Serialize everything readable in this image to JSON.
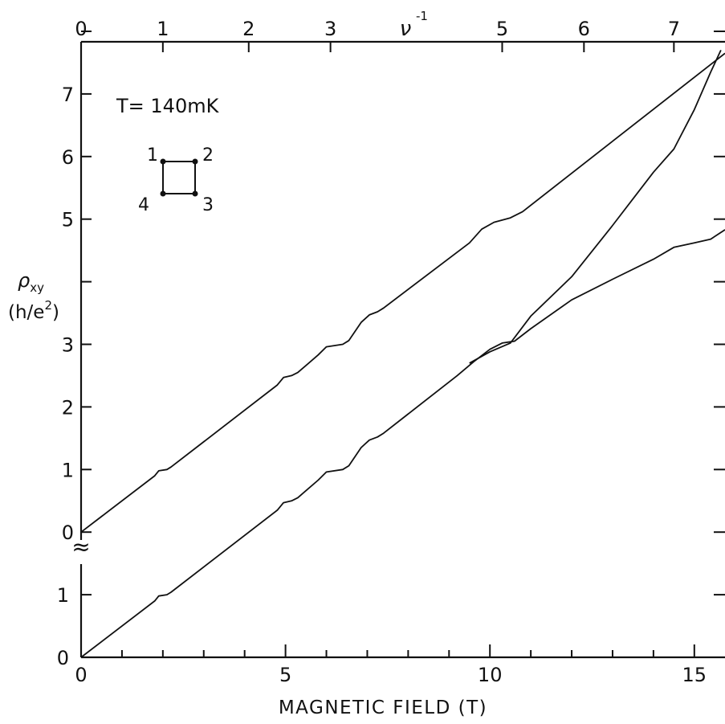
{
  "chart_data": {
    "type": "line",
    "xlabel": "MAGNETIC FIELD (T)",
    "xlim": [
      0,
      15.75
    ],
    "x_ticks": [
      0,
      5,
      10,
      15
    ],
    "x_tick_labels": [
      "0",
      "5",
      "10",
      "15"
    ],
    "top_axis": {
      "label": "ν",
      "label_exponent": "-1",
      "tick_labels": [
        "0",
        "1",
        "2",
        "3",
        "5",
        "6",
        "7"
      ],
      "tick_positions_field": [
        0,
        2.0,
        4.1,
        6.1,
        10.3,
        12.3,
        14.5
      ]
    },
    "ylabel_line1": "ρ",
    "ylabel_subscript": "xy",
    "ylabel_line2_prefix": "(h/e",
    "ylabel_superscript": "2",
    "ylabel_line2_suffix": ")",
    "left_ticks_lower": [
      "0",
      "1"
    ],
    "left_ticks_upper": [
      "0",
      "1",
      "2",
      "3",
      "",
      "5",
      "6",
      "7"
    ],
    "axis_break_symbol": "≈",
    "annotation": "T= 140mK",
    "contact_labels": [
      "1",
      "2",
      "3",
      "4"
    ],
    "series": [
      {
        "offset": 2,
        "points": [
          [
            0,
            0
          ],
          [
            1.8,
            0.9
          ],
          [
            1.9,
            0.98
          ],
          [
            2.1,
            1.0
          ],
          [
            2.2,
            1.04
          ],
          [
            4.8,
            2.35
          ],
          [
            4.95,
            2.47
          ],
          [
            5.15,
            2.5
          ],
          [
            5.3,
            2.55
          ],
          [
            5.8,
            2.83
          ],
          [
            6.0,
            2.96
          ],
          [
            6.4,
            3.0
          ],
          [
            6.55,
            3.06
          ],
          [
            6.85,
            3.35
          ],
          [
            7.05,
            3.47
          ],
          [
            7.25,
            3.52
          ],
          [
            7.4,
            3.58
          ],
          [
            9.5,
            4.62
          ],
          [
            9.8,
            4.84
          ],
          [
            10.1,
            4.95
          ],
          [
            10.5,
            5.02
          ],
          [
            10.8,
            5.12
          ],
          [
            15.75,
            7.65
          ]
        ]
      },
      {
        "offset": 0,
        "points": [
          [
            0,
            0
          ],
          [
            1.8,
            0.9
          ],
          [
            1.9,
            0.98
          ],
          [
            2.1,
            1.0
          ],
          [
            2.2,
            1.04
          ],
          [
            4.8,
            2.35
          ],
          [
            4.95,
            2.47
          ],
          [
            5.15,
            2.5
          ],
          [
            5.3,
            2.55
          ],
          [
            5.8,
            2.83
          ],
          [
            6.0,
            2.96
          ],
          [
            6.4,
            3.0
          ],
          [
            6.55,
            3.06
          ],
          [
            6.85,
            3.35
          ],
          [
            7.05,
            3.47
          ],
          [
            7.25,
            3.52
          ],
          [
            7.4,
            3.58
          ],
          [
            9.2,
            4.5
          ],
          [
            9.6,
            4.72
          ],
          [
            10.0,
            4.92
          ],
          [
            10.3,
            5.02
          ],
          [
            10.6,
            5.05
          ],
          [
            11.0,
            5.25
          ],
          [
            12.0,
            5.71
          ],
          [
            13.0,
            6.04
          ],
          [
            14.0,
            6.36
          ],
          [
            14.5,
            6.55
          ],
          [
            15.0,
            6.62
          ],
          [
            15.4,
            6.68
          ],
          [
            15.75,
            6.83
          ]
        ]
      },
      {
        "offset": 0,
        "points": [
          [
            9.5,
            4.7
          ],
          [
            10.0,
            4.88
          ],
          [
            10.5,
            5.02
          ],
          [
            11.0,
            5.45
          ],
          [
            12.0,
            6.08
          ],
          [
            13.0,
            6.9
          ],
          [
            14.0,
            7.75
          ],
          [
            14.5,
            8.12
          ],
          [
            15.0,
            8.75
          ],
          [
            15.4,
            9.35
          ],
          [
            15.65,
            9.7
          ]
        ]
      }
    ]
  }
}
